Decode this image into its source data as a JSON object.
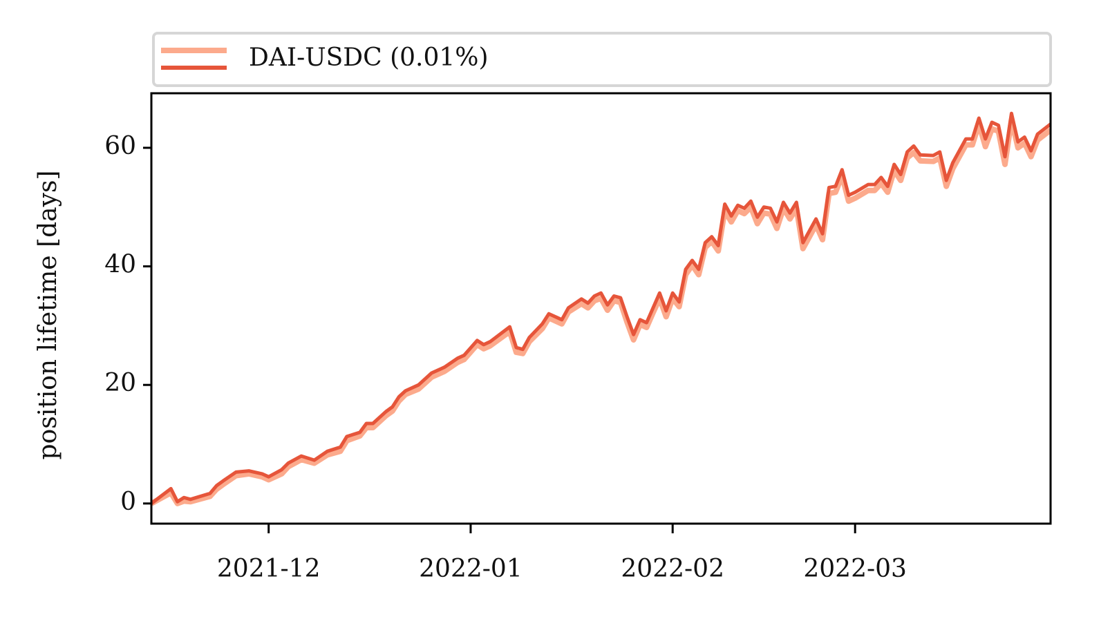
{
  "chart_data": {
    "type": "line",
    "ylabel": "position lifetime [days]",
    "x": [
      18944,
      18947,
      18948,
      18949,
      18950,
      18953,
      18954,
      18955,
      18957,
      18959,
      18961,
      18962,
      18964,
      18965,
      18967,
      18969,
      18971,
      18973,
      18974,
      18976,
      18977,
      18978,
      18980,
      18981,
      18982,
      18983,
      18985,
      18987,
      18989,
      18991,
      18992,
      18994,
      18995,
      18996,
      18999,
      19000,
      19001,
      19002,
      19004,
      19005,
      19007,
      19008,
      19010,
      19011,
      19012,
      19013,
      19014,
      19015,
      19016,
      19017,
      19018,
      19019,
      19020,
      19021,
      19022,
      19023,
      19024,
      19025,
      19026,
      19027,
      19028,
      19029,
      19030,
      19031,
      19032,
      19033,
      19034,
      19035,
      19036,
      19037,
      19038,
      19039,
      19040,
      19041,
      19042,
      19043,
      19044,
      19046,
      19047,
      19048,
      19049,
      19050,
      19051,
      19052,
      19054,
      19055,
      19056,
      19057,
      19058,
      19059,
      19060,
      19061,
      19062,
      19064,
      19065,
      19066,
      19067,
      19069,
      19070,
      19071,
      19072,
      19073,
      19074,
      19075,
      19076,
      19077,
      19078,
      19079,
      19080,
      19082
    ],
    "series": [
      {
        "name": "DAI-USDC (0.01%)",
        "color": "#e6553a",
        "values": [
          0,
          2.5,
          0.3,
          1,
          0.7,
          1.7,
          3,
          3.8,
          5.3,
          5.5,
          5,
          4.5,
          5.7,
          6.8,
          8,
          7.3,
          8.8,
          9.5,
          11.3,
          12,
          13.5,
          13.5,
          15.5,
          16.3,
          18,
          19,
          20,
          22,
          23,
          24.5,
          25,
          27.5,
          26.8,
          27.3,
          29.8,
          26.3,
          26,
          28,
          30.3,
          32,
          31,
          33,
          34.5,
          33.8,
          35,
          35.5,
          33.5,
          35,
          34.7,
          31.5,
          28.5,
          31,
          30.5,
          33,
          35.5,
          32.5,
          35.5,
          34,
          39.5,
          41,
          39.5,
          44,
          45,
          43.5,
          50.5,
          48.5,
          50.3,
          49.8,
          51,
          48.3,
          50,
          49.8,
          47.5,
          50.8,
          49,
          50.8,
          44,
          48,
          45.5,
          53.3,
          53.5,
          56.3,
          52,
          52.5,
          53.8,
          53.8,
          55,
          53.5,
          57.2,
          55.5,
          59.3,
          60.3,
          58.8,
          58.7,
          59.3,
          54.5,
          57.5,
          61.5,
          61.5,
          65,
          61.5,
          64.3,
          63.8,
          58.5,
          65.8,
          61,
          61.8,
          59.5,
          62.3,
          64
        ]
      },
      {
        "color": "#fcaa8c",
        "values": [
          0,
          1.8,
          0,
          0.4,
          0.3,
          1.2,
          2.4,
          3.2,
          4.7,
          5,
          4.5,
          4,
          5,
          6.2,
          7.4,
          6.8,
          8.2,
          8.8,
          10.6,
          11.4,
          12.8,
          12.8,
          14.8,
          15.6,
          17.3,
          18.4,
          19.3,
          21.3,
          22.3,
          23.8,
          24.3,
          26.8,
          26.1,
          26.6,
          29,
          25.5,
          25.3,
          27.3,
          29.5,
          31.3,
          30.3,
          32.3,
          33.7,
          33,
          34.2,
          34.6,
          32.6,
          34.2,
          33.9,
          30.6,
          27.6,
          30.2,
          29.7,
          32.2,
          34.6,
          31.5,
          34.6,
          33.2,
          38.6,
          40.2,
          38.6,
          43.2,
          44.2,
          42.6,
          49.4,
          47.5,
          49.4,
          48.9,
          50,
          47.2,
          49,
          48.8,
          46.4,
          49.8,
          48,
          49.8,
          43,
          47,
          44.5,
          52.3,
          52.5,
          55.3,
          51,
          51.5,
          52.8,
          52.8,
          54,
          52.5,
          56.2,
          54.5,
          58.3,
          59.2,
          57.8,
          57.7,
          58.3,
          53.5,
          56.5,
          60.5,
          60.5,
          64,
          60.2,
          63.2,
          62.8,
          57.2,
          64.7,
          60,
          60.8,
          58.5,
          61.3,
          63
        ]
      }
    ],
    "xlim": [
      18944,
      19082
    ],
    "xticks": [
      {
        "value": 18962,
        "label": "2021-12"
      },
      {
        "value": 18993,
        "label": "2022-01"
      },
      {
        "value": 19024,
        "label": "2022-02"
      },
      {
        "value": 19052,
        "label": "2022-03"
      }
    ],
    "ylim": [
      -3.4,
      69.2
    ],
    "yticks": [
      0,
      20,
      40,
      60
    ],
    "grid": false,
    "legend": "top"
  }
}
